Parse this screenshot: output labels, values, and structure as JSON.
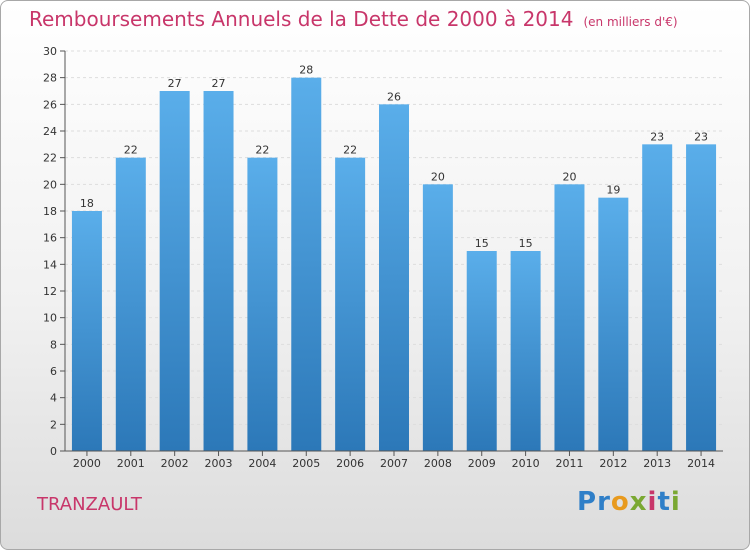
{
  "header": {
    "title": "Remboursements Annuels de la Dette de 2000 à 2014",
    "subtitle": "(en milliers d'€)"
  },
  "footer": {
    "commune": "TRANZAULT",
    "brand": "Proxiti",
    "brand_letters": [
      "P",
      "r",
      "o",
      "x",
      "i",
      "t",
      "i"
    ],
    "brand_colors": [
      "#2f7fc8",
      "#2f7fc8",
      "#e89a1e",
      "#7aa832",
      "#c8366a",
      "#2f7fc8",
      "#7aa832"
    ]
  },
  "colors": {
    "bar_light": "#5aaeea",
    "bar_dark": "#2c78b8",
    "title": "#c8366a",
    "axis": "#555555",
    "grid": "#dddddd"
  },
  "chart_data": {
    "type": "bar",
    "title": "Remboursements Annuels de la Dette de 2000 à 2014",
    "subtitle": "(en milliers d'€)",
    "xlabel": "",
    "ylabel": "",
    "categories": [
      "2000",
      "2001",
      "2002",
      "2003",
      "2004",
      "2005",
      "2006",
      "2007",
      "2008",
      "2009",
      "2010",
      "2011",
      "2012",
      "2013",
      "2014"
    ],
    "values": [
      18,
      22,
      27,
      27,
      22,
      28,
      22,
      26,
      20,
      15,
      15,
      20,
      19,
      23,
      23
    ],
    "ylim": [
      0,
      30
    ],
    "yticks": [
      0,
      2,
      4,
      6,
      8,
      10,
      12,
      14,
      16,
      18,
      20,
      22,
      24,
      26,
      28,
      30
    ],
    "grid": "horizontal dashed",
    "legend": "none"
  }
}
